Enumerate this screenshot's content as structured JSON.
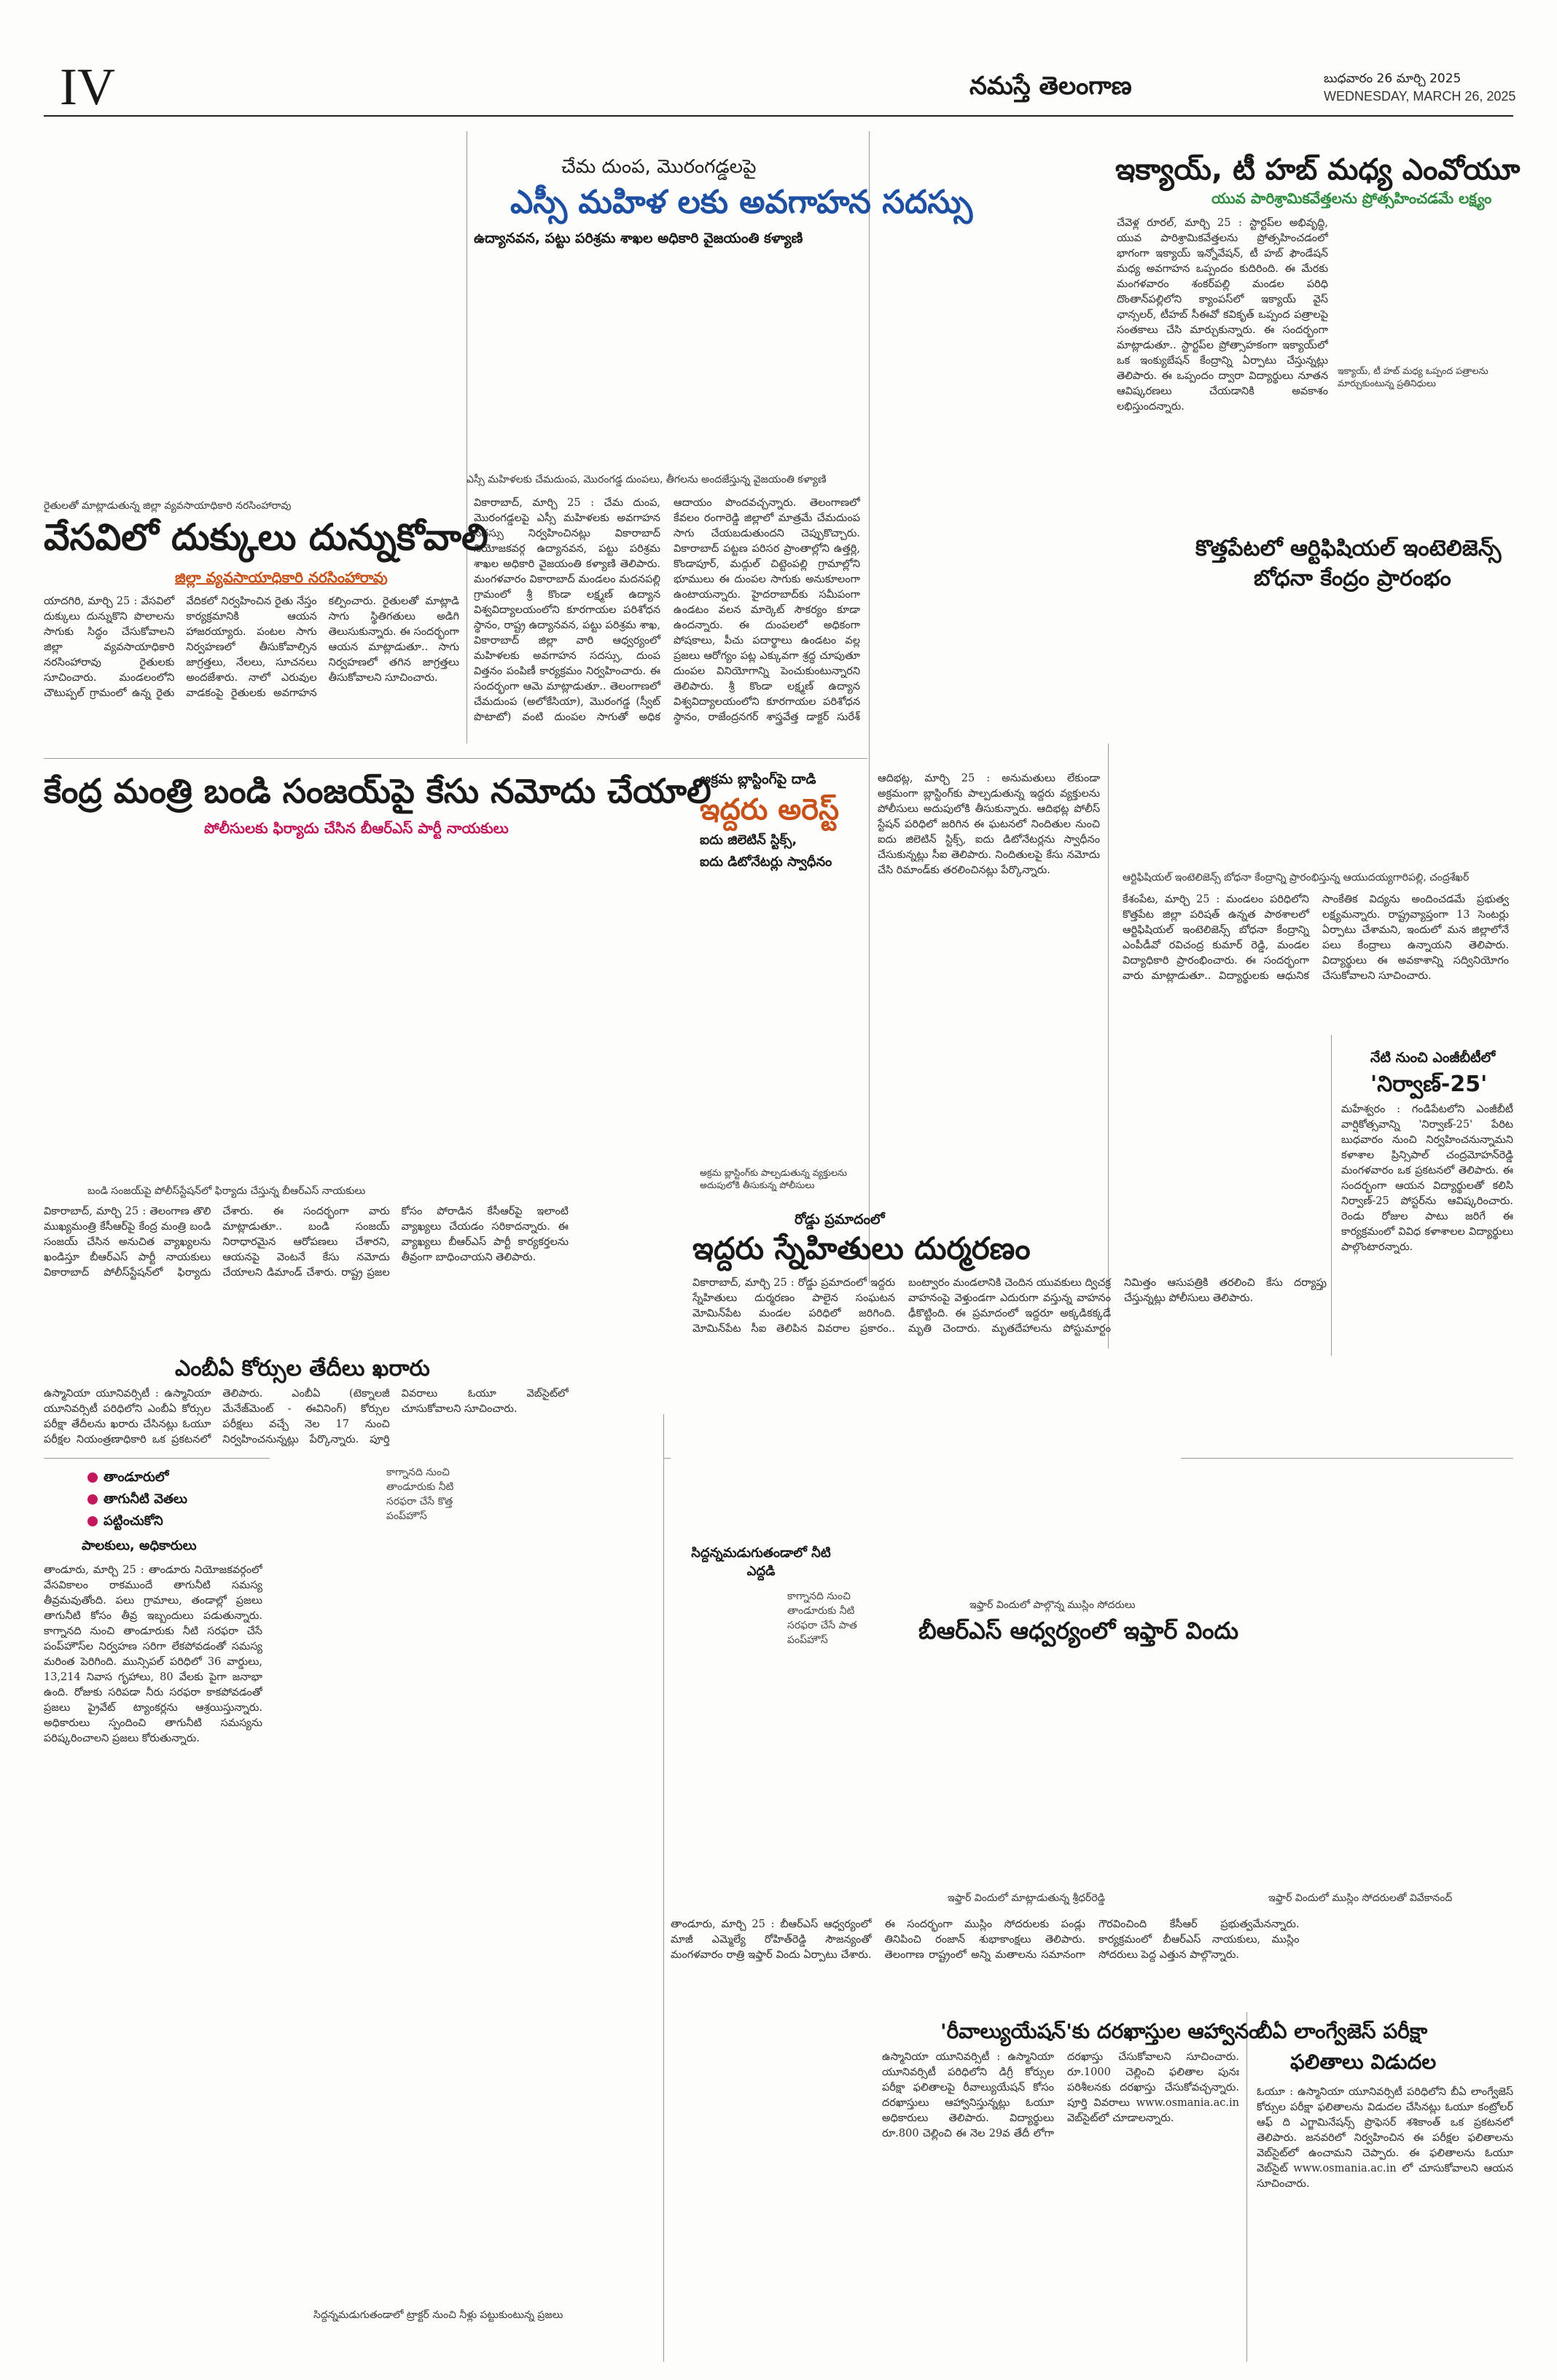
{
  "header": {
    "page_number": "IV",
    "masthead": "నమస్తే తెలంగాణ",
    "date_telugu": "బుధవారం 26 మార్చి 2025",
    "date_english": "WEDNESDAY, MARCH 26, 2025"
  },
  "articles": {
    "sc_women": {
      "kicker": "చేమ దుంప, మొరంగడ్డలపై",
      "headline": "ఎస్సీ మహిళ లకు అవగాహన సదస్సు",
      "subhead": "ఉద్యానవన, పట్టు పరిశ్రమ శాఖల అధికారి వైజయంతి కళ్యాణి",
      "photo_caption": "ఎస్సీ మహిళలకు చేమదుంప, మొరంగడ్డ దుంపలు, తీగలను అందజేస్తున్న వైజయంతి కళ్యాణి",
      "body": "వికారాబాద్, మార్చి 25 : చేమ దుంప, మొరంగడ్డలపై ఎస్సీ మహిళలకు అవగాహన సదస్సు నిర్వహించినట్లు వికారాబాద్ నియోజకవర్గ ఉద్యానవన, పట్టు పరిశ్రమ శాఖల అధికారి వైజయంతి కళ్యాణి తెలిపారు. మంగళవారం వికారాబాద్ మండలం మదనపల్లి గ్రామంలో శ్రీ కొండా లక్ష్మణ్ ఉద్యాన విశ్వవిద్యాలయంలోని కూరగాయల పరిశోధన స్థానం, రాష్ట్ర ఉద్యానవన, పట్టు పరిశ్రమ శాఖ, వికారాబాద్ జిల్లా వారి ఆధ్వర్యంలో మహిళలకు అవగాహన సదస్సు, దుంప విత్తనం పంపిణీ కార్యక్రమం నిర్వహించారు. ఈ సందర్భంగా ఆమె మాట్లాడుతూ.. తెలంగాణలో చేమదుంప (అలోకేసియా), మొరంగడ్డ (స్వీట్ పొటాటో) వంటి దుంపల సాగుతో అధిక ఆదాయం పొందవచ్చన్నారు. తెలంగాణలో కేవలం రంగారెడ్డి జిల్లాలో మాత్రమే చేమదుంప సాగు చేయబడుతుందని చెప్పుకొచ్చారు. వికారాబాద్ పట్టణ పరిసర ప్రాంతాల్లోని ఉత్తర్లి, కొండాపూర్, మద్గుల్ చిట్టెంపల్లి గ్రామాల్లోని భూములు ఈ దుంపల సాగుకు అనుకూలంగా ఉంటాయన్నారు. హైదరాబాద్‌కు సమీపంగా ఉండటం వలన మార్కెట్ సౌకర్యం కూడా ఉందన్నారు. ఈ దుంపలలో అధికంగా పోషకాలు, పీచు పదార్థాలు ఉండటం వల్ల ప్రజలు ఆరోగ్యం పట్ల ఎక్కువగా శ్రద్ధ చూపుతూ దుంపల వినియోగాన్ని పెంచుకుంటున్నారని తెలిపారు. శ్రీ కొండా లక్ష్మణ్ ఉద్యాన విశ్వవిద్యాలయంలోని కూరగాయల పరిశోధన స్థానం, రాజేంద్రనగర్ శాస్త్రవేత్త డాక్టర్ సురేశ్ మాట్లాడుతూ.. చేమదుంప, మొరంగడ్డ సాగు, వాటి యాజమాన్య పద్ధతుల గురించి వివరించారు."
    },
    "summer": {
      "kicker": "రైతులతో మాట్లాడుతున్న జిల్లా వ్యవసాయాధికారి నరసింహారావు",
      "headline": "వేసవిలో దుక్కులు దున్నుకోవాలి",
      "subhead": "జిల్లా వ్యవసాయాధికారి నరసింహారావు",
      "body": "యాదగిరి, మార్చి 25 : వేసవిలో దుక్కులు దున్నుకొని పొలాలను సాగుకు సిద్ధం చేసుకోవాలని జిల్లా వ్యవసాయాధికారి నరసింహారావు రైతులకు సూచించారు. మండలంలోని చౌటుప్పల్ గ్రామంలో ఉన్న రైతు వేదికలో నిర్వహించిన రైతు నేస్తం కార్యక్రమానికి ఆయన హాజరయ్యారు. పంటల సాగు నిర్వహణలో తీసుకోవాల్సిన జాగ్రత్తలు, నేలలు, సూచనలు అందజేశారు. నాలో ఎరువుల వాడకంపై రైతులకు అవగాహన కల్పించారు. రైతులతో మాట్లాడి సాగు స్థితిగతులు అడిగి తెలుసుకున్నారు. ఈ సందర్భంగా ఆయన మాట్లాడుతూ.. సాగు నిర్వహణలో తగిన జాగ్రత్తలు తీసుకోవాలని సూచించారు."
    },
    "ikyai": {
      "headline": "ఇక్యాయ్, టీ హబ్ మధ్య ఎంవోయూ",
      "subhead": "యువ పారిశ్రామికవేత్తలను ప్రోత్సహించడమే లక్ష్యం",
      "photo_caption": "ఇక్యాయ్, టీ హబ్ మధ్య ఒప్పంద పత్రాలను మార్చుకుంటున్న ప్రతినిధులు",
      "body": "చేవెళ్ల రూరల్, మార్చి 25 : స్టార్టప్‌ల అభివృద్ధి, యువ పారిశ్రామికవేత్తలను ప్రోత్సహించడంలో భాగంగా ఇక్యాయ్ ఇన్నోవేషన్, టీ హబ్ ఫౌండేషన్ మధ్య అవగాహన ఒప్పందం కుదిరింది. ఈ మేరకు మంగళవారం శంకర్‌పల్లి మండల పరిధి దొంతాన్‌పల్లిలోని క్యాంపస్‌లో ఇక్యాయ్ వైస్ ఛాన్సలర్, టీహబ్ సీఈవో కవికృత్ ఒప్పంద పత్రాలపై సంతకాలు చేసి మార్చుకున్నారు. ఈ సందర్భంగా మాట్లాడుతూ.. స్టార్టప్‌ల ప్రోత్సాహకంగా ఇక్యాయ్‌లో ఒక ఇంక్యుబేషన్ కేంద్రాన్ని ఏర్పాటు చేస్తున్నట్లు తెలిపారు. ఈ ఒప్పందం ద్వారా విద్యార్థులు నూతన ఆవిష్కరణలు చేయడానికి అవకాశం లభిస్తుందన్నారు."
    },
    "ai_center": {
      "headline_1": "కొత్తపేటలో ఆర్టిఫిషియల్ ఇంటెలిజెన్స్",
      "headline_2": "బోధనా కేంద్రం ప్రారంభం",
      "photo_caption": "ఆర్టిఫిషియల్ ఇంటెలిజెన్స్ బోధనా కేంద్రాన్ని ప్రారంభిస్తున్న ఆయుదయ్యగారిపల్లి, చంద్రశేఖర్",
      "body": "కేశంపేట, మార్చి 25 : మండలం పరిధిలోని కొత్తపేట జిల్లా పరిషత్ ఉన్నత పాఠశాలలో ఆర్టిఫిషియల్ ఇంటెలిజెన్స్ బోధనా కేంద్రాన్ని ఎంపీడీవో రవిచంద్ర కుమార్ రెడ్డి, మండల విద్యాధికారి ప్రారంభించారు. ఈ సందర్భంగా వారు మాట్లాడుతూ.. విద్యార్థులకు ఆధునిక సాంకేతిక విద్యను అందించడమే ప్రభుత్వ లక్ష్యమన్నారు. రాష్ట్రవ్యాప్తంగా 13 సెంటర్లు ఏర్పాటు చేశామని, ఇందులో మన జిల్లాలోనే పలు కేంద్రాలు ఉన్నాయని తెలిపారు. విద్యార్థులు ఈ అవకాశాన్ని సద్వినియోగం చేసుకోవాలని సూచించారు."
    },
    "nirvana": {
      "kicker": "నేటి నుంచి ఎంజీబీటీలో",
      "headline": "'నిర్వాణ్-25'",
      "body": "మహేశ్వరం : గండిపేటలోని ఎంజీబీటీ వార్షికోత్సవాన్ని 'నిర్వాణ్-25' పేరిట బుధవారం నుంచి నిర్వహించనున్నామని కళాశాల ప్రిన్సిపాల్ చంద్రమోహన్‌రెడ్డి మంగళవారం ఒక ప్రకటనలో తెలిపారు. ఈ సందర్భంగా ఆయన విద్యార్థులతో కలిసి నిర్వాణ్-25 పోస్టర్‌ను ఆవిష్కరించారు. రెండు రోజుల పాటు జరిగే ఈ కార్యక్రమంలో వివిధ కళాశాలల విద్యార్థులు పాల్గొంటారన్నారు."
    },
    "bandi": {
      "headline": "కేంద్ర మంత్రి బండి సంజయ్‌పై కేసు నమోదు చేయాలి",
      "subhead": "పోలీసులకు ఫిర్యాదు చేసిన బీఆర్ఎస్ పార్టీ నాయకులు",
      "photo_caption": "బండి సంజయ్‌పై పోలీస్‌స్టేషన్‌లో ఫిర్యాదు చేస్తున్న బీఆర్ఎస్ నాయకులు",
      "body": "వికారాబాద్, మార్చి 25 : తెలంగాణ తొలి ముఖ్యమంత్రి కేసీఆర్‌పై కేంద్ర మంత్రి బండి సంజయ్ చేసిన అనుచిత వ్యాఖ్యలను ఖండిస్తూ బీఆర్ఎస్ పార్టీ నాయకులు వికారాబాద్ పోలీస్‌స్టేషన్‌లో ఫిర్యాదు చేశారు. ఈ సందర్భంగా వారు మాట్లాడుతూ.. బండి సంజయ్ నిరాధారమైన ఆరోపణలు చేశారని, ఆయనపై వెంటనే కేసు నమోదు చేయాలని డిమాండ్ చేశారు. రాష్ట్ర ప్రజల కోసం పోరాడిన కేసీఆర్‌పై ఇలాంటి వ్యాఖ్యలు చేయడం సరికాదన్నారు. ఈ వ్యాఖ్యలు బీఆర్ఎస్ పార్టీ కార్యకర్తలను తీవ్రంగా బాధించాయని తెలిపారు."
    },
    "arrest": {
      "kicker": "అక్రమ బ్లాస్టింగ్‌పై దాడి",
      "headline": "ఇద్దరు అరెస్ట్",
      "subhead_1": "ఐదు జిలెటిన్ స్టిక్స్,",
      "subhead_2": "ఐదు డిటోనేటర్లు స్వాధీనం",
      "photo_caption": "అక్రమ బ్లాస్టింగ్‌కు పాల్పడుతున్న వ్యక్తులను అదుపులోకి తీసుకున్న పోలీసులు",
      "body": "ఆదిభట్ల, మార్చి 25 : అనుమతులు లేకుండా అక్రమంగా బ్లాస్టింగ్‌కు పాల్పడుతున్న ఇద్దరు వ్యక్తులను పోలీసులు అదుపులోకి తీసుకున్నారు. ఆదిభట్ల పోలీస్ స్టేషన్ పరిధిలో జరిగిన ఈ ఘటనలో నిందితుల నుంచి ఐదు జిలెటిన్ స్టిక్స్, ఐదు డిటోనేటర్లను స్వాధీనం చేసుకున్నట్లు సీఐ తెలిపారు. నిందితులపై కేసు నమోదు చేసి రిమాండ్‌కు తరలించినట్లు పేర్కొన్నారు."
    },
    "accident": {
      "kicker": "రోడ్డు ప్రమాదంలో",
      "headline": "ఇద్దరు స్నేహితులు దుర్మరణం",
      "body": "వికారాబాద్, మార్చి 25 : రోడ్డు ప్రమాదంలో ఇద్దరు స్నేహితులు దుర్మరణం పాలైన సంఘటన మోమిన్‌పేట మండల పరిధిలో జరిగింది. మోమిన్‌పేట సీఐ తెలిపిన వివరాల ప్రకారం.. బంట్వారం మండలానికి చెందిన యువకులు ద్విచక్ర వాహనంపై వెళ్తుండగా ఎదురుగా వస్తున్న వాహనం ఢీకొట్టింది. ఈ ప్రమాదంలో ఇద్దరూ అక్కడికక్కడే మృతి చెందారు. మృతదేహాలను పోస్టుమార్టం నిమిత్తం ఆసుపత్రికి తరలించి కేసు దర్యాప్తు చేస్తున్నట్లు పోలీసులు తెలిపారు."
    },
    "mbbs": {
      "headline": "ఎంబీఏ కోర్సుల తేదీలు ఖరారు",
      "body": "ఉస్మానియా యూనివర్సిటీ : ఉస్మానియా యూనివర్సిటీ పరిధిలోని ఎంబీఏ కోర్సుల పరీక్షా తేదీలను ఖరారు చేసినట్లు ఓయూ పరీక్షల నియంత్రణాధికారి ఒక ప్రకటనలో తెలిపారు. ఎంబీఏ (టెక్నాలజీ మేనేజ్‌మెంట్ - ఈవినింగ్) కోర్సుల పరీక్షలు వచ్చే నెల 17 నుంచి నిర్వహించనున్నట్లు పేర్కొన్నారు. పూర్తి వివరాలు ఓయూ వెబ్‌సైట్‌లో చూసుకోవాలని సూచించారు."
    },
    "water": {
      "bullets": [
        "తాండూరులో",
        "తాగునీటి వెతలు",
        "పట్టించుకోని"
      ],
      "subhead": "పాలకులు, అధికారులు",
      "caption_1": "కాగ్నానది నుంచి తాండూరుకు నీటి సరఫరా చేసే కొత్త పంప్‌హౌస్",
      "caption_2": "సిద్దన్నమడుగుతండాలో నీటి ఎద్దడి",
      "caption_3": "కాగ్నానది నుంచి తాండూరుకు నీటి సరఫరా చేసే పాత పంప్‌హౌస్",
      "caption_4": "సిద్దన్నమడుగుతండాలో ట్రాక్టర్ నుంచి నీళ్లు పట్టుకుంటున్న ప్రజలు",
      "body": "తాండూరు, మార్చి 25 : తాండూరు నియోజకవర్గంలో వేసవికాలం రాకముందే తాగునీటి సమస్య తీవ్రమవుతోంది. పలు గ్రామాలు, తండాల్లో ప్రజలు తాగునీటి కోసం తీవ్ర ఇబ్బందులు పడుతున్నారు. కాగ్నానది నుంచి తాండూరుకు నీటి సరఫరా చేసే పంప్‌హౌస్‌ల నిర్వహణ సరిగా లేకపోవడంతో సమస్య మరింత పెరిగింది. మున్సిపల్ పరిధిలో 36 వార్డులు, 13,214 నివాస గృహాలు, 80 వేలకు పైగా జనాభా ఉంది. రోజుకు సరిపడా నీరు సరఫరా కాకపోవడంతో ప్రజలు ప్రైవేట్ ట్యాంకర్లను ఆశ్రయిస్తున్నారు. అధికారులు స్పందించి తాగునీటి సమస్యను పరిష్కరించాలని ప్రజలు కోరుతున్నారు."
    },
    "iftar": {
      "kicker": "ఇఫ్తార్ విందులో పాల్గొన్న ముస్లిం సోదరులు",
      "headline": "బీఆర్ఎస్ ఆధ్వర్యంలో ఇఫ్తార్ విందు",
      "caption_1": "ఇఫ్తార్ విందులో మాట్లాడుతున్న శ్రీధర్‌రెడ్డి",
      "caption_2": "ఇఫ్తార్ విందులో ముస్లిం సోదరులతో వివేకానంద్",
      "body": "తాండూరు, మార్చి 25 : బీఆర్ఎస్ ఆధ్వర్యంలో మాజీ ఎమ్మెల్యే రోహిత్‌రెడ్డి సౌజన్యంతో మంగళవారం రాత్రి ఇఫ్తార్ విందు ఏర్పాటు చేశారు. ఈ సందర్భంగా ముస్లిం సోదరులకు పండ్లు తినిపించి రంజాన్ శుభాకాంక్షలు తెలిపారు. తెలంగాణ రాష్ట్రంలో అన్ని మతాలను సమానంగా గౌరవించింది కేసీఆర్ ప్రభుత్వమేనన్నారు. కార్యక్రమంలో బీఆర్ఎస్ నాయకులు, ముస్లిం సోదరులు పెద్ద ఎత్తున పాల్గొన్నారు."
    },
    "revaluation": {
      "headline": "'రీవాల్యుయేషన్'కు దరఖాస్తుల ఆహ్వానం",
      "body": "ఉస్మానియా యూనివర్సిటీ : ఉస్మానియా యూనివర్సిటీ పరిధిలోని డిగ్రీ కోర్సుల పరీక్షా ఫలితాలపై రీవాల్యుయేషన్ కోసం దరఖాస్తులు ఆహ్వానిస్తున్నట్లు ఓయూ అధికారులు తెలిపారు. విద్యార్థులు రూ.800 చెల్లించి ఈ నెల 29వ తేదీ లోగా దరఖాస్తు చేసుకోవాలని సూచించారు. రూ.1000 చెల్లించి ఫలితాల పునః పరిశీలనకు దరఖాస్తు చేసుకోవచ్చన్నారు. పూర్తి వివరాలు www.osmania.ac.in వెబ్‌సైట్‌లో చూడాలన్నారు."
    },
    "bio_results": {
      "headline_1": "బీఏ లాంగ్వేజెస్ పరీక్షా",
      "headline_2": "ఫలితాలు విడుదల",
      "body": "ఓయూ : ఉస్మానియా యూనివర్సిటీ పరిధిలోని బీఏ లాంగ్వేజెస్ కోర్సుల పరీక్షా ఫలితాలను విడుదల చేసినట్లు ఓయూ కంట్రోలర్ ఆఫ్ ది ఎగ్జామినేషన్స్ ప్రొఫెసర్ శశికాంత్ ఒక ప్రకటనలో తెలిపారు. జనవరిలో నిర్వహించిన ఈ పరీక్షల ఫలితాలను వెబ్‌సైట్‌లో ఉంచామని చెప్పారు. ఈ ఫలితాలను ఓయూ వెబ్‌సైట్ www.osmania.ac.in లో చూసుకోవాలని ఆయన సూచించారు."
    }
  }
}
